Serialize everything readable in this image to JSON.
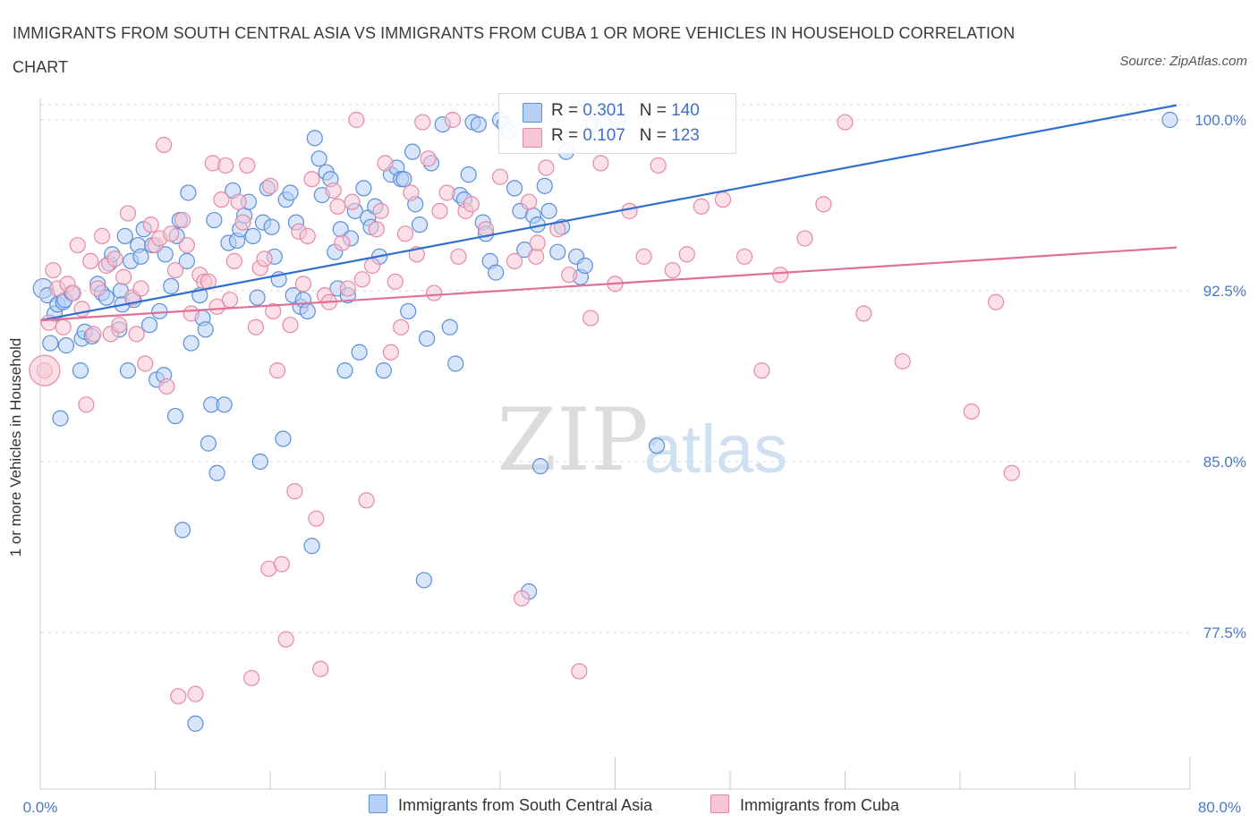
{
  "title": "IMMIGRANTS FROM SOUTH CENTRAL ASIA VS IMMIGRANTS FROM CUBA 1 OR MORE VEHICLES IN HOUSEHOLD CORRELATION CHART",
  "source": "Source: ZipAtlas.com",
  "watermark": {
    "zip": "ZIP",
    "atlas": "atlas"
  },
  "legend": {
    "rows": [
      {
        "r_label": "R =",
        "r_value": "0.301",
        "n_label": "N =",
        "n_value": "140"
      },
      {
        "r_label": "R =",
        "r_value": "0.107",
        "n_label": "N =",
        "n_value": "123"
      }
    ]
  },
  "colors": {
    "blue_fill": "#b8d0f5",
    "blue_stroke": "#5b8fd9",
    "blue_line": "#2f6fd0",
    "pink_fill": "#f7c6d4",
    "pink_stroke": "#e58aa6",
    "pink_line": "#e0709a",
    "tick": "#4a78c8",
    "grid": "#d8d8d8"
  },
  "chart_data": {
    "type": "scatter",
    "title": "IMMIGRANTS FROM SOUTH CENTRAL ASIA VS IMMIGRANTS FROM CUBA 1 OR MORE VEHICLES IN HOUSEHOLD CORRELATION CHART",
    "xlabel": "",
    "ylabel": "1 or more Vehicles in Household",
    "xlim": [
      0,
      80
    ],
    "ylim": [
      70,
      100.5
    ],
    "x_tick_labels": [
      "0.0%",
      "80.0%"
    ],
    "y_ticks": [
      77.5,
      85.0,
      92.5,
      100.0
    ],
    "y_tick_labels": [
      "77.5%",
      "85.0%",
      "92.5%",
      "100.0%"
    ],
    "grid": true,
    "legend_position": "bottom",
    "series": [
      {
        "name": "Immigrants from South Central Asia",
        "color": "#5b8fd9",
        "r": 0.301,
        "n": 140,
        "trend": {
          "x": [
            0,
            80
          ],
          "y": [
            91.2,
            100.8
          ]
        },
        "points": [
          [
            0.2,
            92.6
          ],
          [
            0.5,
            92.3
          ],
          [
            0.7,
            90.2
          ],
          [
            1.0,
            91.5
          ],
          [
            1.2,
            91.9
          ],
          [
            1.4,
            86.9
          ],
          [
            1.6,
            92.0
          ],
          [
            1.7,
            92.1
          ],
          [
            1.8,
            90.1
          ],
          [
            2.2,
            92.4
          ],
          [
            2.8,
            89.0
          ],
          [
            2.9,
            90.4
          ],
          [
            3.1,
            90.7
          ],
          [
            3.6,
            90.5
          ],
          [
            4.0,
            92.8
          ],
          [
            4.3,
            92.4
          ],
          [
            4.6,
            92.2
          ],
          [
            4.8,
            93.7
          ],
          [
            5.0,
            94.1
          ],
          [
            5.6,
            92.5
          ],
          [
            5.7,
            91.9
          ],
          [
            5.5,
            90.8
          ],
          [
            5.9,
            94.9
          ],
          [
            6.1,
            89.0
          ],
          [
            6.3,
            93.8
          ],
          [
            6.5,
            92.1
          ],
          [
            6.8,
            94.5
          ],
          [
            7.0,
            94.0
          ],
          [
            7.2,
            95.2
          ],
          [
            7.6,
            91.0
          ],
          [
            7.8,
            94.5
          ],
          [
            8.1,
            88.6
          ],
          [
            8.3,
            91.6
          ],
          [
            8.6,
            88.8
          ],
          [
            8.7,
            94.1
          ],
          [
            9.1,
            92.7
          ],
          [
            9.4,
            87.0
          ],
          [
            9.5,
            94.9
          ],
          [
            9.7,
            95.6
          ],
          [
            9.9,
            82.0
          ],
          [
            10.2,
            93.8
          ],
          [
            10.5,
            90.2
          ],
          [
            10.8,
            73.5
          ],
          [
            10.3,
            96.8
          ],
          [
            11.1,
            92.3
          ],
          [
            11.3,
            91.3
          ],
          [
            11.5,
            90.8
          ],
          [
            11.7,
            85.8
          ],
          [
            11.9,
            87.5
          ],
          [
            12.1,
            95.6
          ],
          [
            12.3,
            84.5
          ],
          [
            12.8,
            87.5
          ],
          [
            13.1,
            94.6
          ],
          [
            13.4,
            96.9
          ],
          [
            13.7,
            94.7
          ],
          [
            13.9,
            95.2
          ],
          [
            14.2,
            95.8
          ],
          [
            14.5,
            96.4
          ],
          [
            14.8,
            94.9
          ],
          [
            15.1,
            92.2
          ],
          [
            15.3,
            85.0
          ],
          [
            15.5,
            95.5
          ],
          [
            15.8,
            97.0
          ],
          [
            16.1,
            95.3
          ],
          [
            16.3,
            94.0
          ],
          [
            16.6,
            93.0
          ],
          [
            16.9,
            86.0
          ],
          [
            17.1,
            96.5
          ],
          [
            17.4,
            96.8
          ],
          [
            17.6,
            92.3
          ],
          [
            17.8,
            95.5
          ],
          [
            18.1,
            91.8
          ],
          [
            18.3,
            92.1
          ],
          [
            18.6,
            91.6
          ],
          [
            18.9,
            81.3
          ],
          [
            19.1,
            99.2
          ],
          [
            19.4,
            98.3
          ],
          [
            19.6,
            96.7
          ],
          [
            19.9,
            97.7
          ],
          [
            20.2,
            97.4
          ],
          [
            20.5,
            94.2
          ],
          [
            20.7,
            92.6
          ],
          [
            20.9,
            95.2
          ],
          [
            21.2,
            89.0
          ],
          [
            21.4,
            92.3
          ],
          [
            21.6,
            94.8
          ],
          [
            21.9,
            96.0
          ],
          [
            22.2,
            89.8
          ],
          [
            22.5,
            97.0
          ],
          [
            22.8,
            95.7
          ],
          [
            23.0,
            95.3
          ],
          [
            23.3,
            96.2
          ],
          [
            23.6,
            94.0
          ],
          [
            23.9,
            89.0
          ],
          [
            24.4,
            97.6
          ],
          [
            24.8,
            97.9
          ],
          [
            25.1,
            97.4
          ],
          [
            25.6,
            91.6
          ],
          [
            25.9,
            98.6
          ],
          [
            25.3,
            97.4
          ],
          [
            26.1,
            96.3
          ],
          [
            26.4,
            95.4
          ],
          [
            26.7,
            79.8
          ],
          [
            26.9,
            90.4
          ],
          [
            27.2,
            98.1
          ],
          [
            28.0,
            99.8
          ],
          [
            28.5,
            90.9
          ],
          [
            28.9,
            89.3
          ],
          [
            29.2,
            96.7
          ],
          [
            29.5,
            96.5
          ],
          [
            29.8,
            97.6
          ],
          [
            30.1,
            99.9
          ],
          [
            30.5,
            99.8
          ],
          [
            30.8,
            95.5
          ],
          [
            31.0,
            95.0
          ],
          [
            31.3,
            93.8
          ],
          [
            31.7,
            93.3
          ],
          [
            32.0,
            100.0
          ],
          [
            32.3,
            99.8
          ],
          [
            32.6,
            99.5
          ],
          [
            33.0,
            97.0
          ],
          [
            33.4,
            96.0
          ],
          [
            33.7,
            94.3
          ],
          [
            34.0,
            79.3
          ],
          [
            34.3,
            95.8
          ],
          [
            34.6,
            95.4
          ],
          [
            34.8,
            84.8
          ],
          [
            35.1,
            97.1
          ],
          [
            35.4,
            96.0
          ],
          [
            36.0,
            94.2
          ],
          [
            36.3,
            95.3
          ],
          [
            36.6,
            98.6
          ],
          [
            37.3,
            94.0
          ],
          [
            37.6,
            93.1
          ],
          [
            37.9,
            93.6
          ],
          [
            38.5,
            99.8
          ],
          [
            39.2,
            99.8
          ],
          [
            40.2,
            100.0
          ],
          [
            42.9,
            85.7
          ],
          [
            78.6,
            100.0
          ]
        ]
      },
      {
        "name": "Immigrants from Cuba",
        "color": "#e58aa6",
        "r": 0.107,
        "n": 123,
        "trend": {
          "x": [
            0,
            80
          ],
          "y": [
            91.2,
            94.4
          ]
        },
        "points": [
          [
            0.3,
            89.0
          ],
          [
            0.6,
            91.1
          ],
          [
            0.9,
            93.4
          ],
          [
            1.2,
            92.6
          ],
          [
            1.6,
            90.9
          ],
          [
            1.9,
            92.8
          ],
          [
            2.3,
            92.4
          ],
          [
            2.6,
            94.5
          ],
          [
            2.9,
            91.7
          ],
          [
            3.2,
            87.5
          ],
          [
            3.5,
            93.8
          ],
          [
            3.7,
            90.6
          ],
          [
            4.0,
            92.6
          ],
          [
            4.3,
            94.9
          ],
          [
            4.6,
            93.6
          ],
          [
            4.9,
            90.6
          ],
          [
            5.2,
            93.9
          ],
          [
            5.5,
            91.0
          ],
          [
            5.8,
            93.1
          ],
          [
            6.1,
            95.9
          ],
          [
            6.4,
            92.2
          ],
          [
            6.7,
            90.6
          ],
          [
            7.0,
            92.6
          ],
          [
            7.3,
            89.3
          ],
          [
            7.7,
            95.4
          ],
          [
            8.0,
            94.5
          ],
          [
            8.3,
            94.8
          ],
          [
            8.6,
            98.9
          ],
          [
            8.8,
            88.3
          ],
          [
            9.1,
            95.0
          ],
          [
            9.4,
            93.4
          ],
          [
            9.6,
            74.7
          ],
          [
            9.9,
            95.6
          ],
          [
            10.2,
            94.5
          ],
          [
            10.5,
            91.5
          ],
          [
            10.8,
            74.8
          ],
          [
            11.1,
            93.2
          ],
          [
            11.4,
            92.9
          ],
          [
            11.7,
            92.9
          ],
          [
            12.0,
            98.1
          ],
          [
            12.3,
            91.8
          ],
          [
            12.6,
            96.5
          ],
          [
            12.9,
            98.0
          ],
          [
            13.2,
            92.1
          ],
          [
            13.5,
            93.8
          ],
          [
            13.8,
            96.4
          ],
          [
            14.1,
            95.5
          ],
          [
            14.4,
            98.0
          ],
          [
            14.7,
            75.5
          ],
          [
            15.0,
            90.9
          ],
          [
            15.3,
            93.5
          ],
          [
            15.6,
            93.9
          ],
          [
            15.9,
            80.3
          ],
          [
            16.2,
            91.6
          ],
          [
            16.5,
            89.0
          ],
          [
            16.8,
            80.5
          ],
          [
            17.1,
            77.2
          ],
          [
            17.4,
            91.0
          ],
          [
            17.7,
            83.7
          ],
          [
            18.0,
            95.1
          ],
          [
            18.3,
            92.8
          ],
          [
            18.6,
            94.9
          ],
          [
            18.9,
            97.4
          ],
          [
            19.2,
            82.5
          ],
          [
            19.5,
            75.9
          ],
          [
            19.8,
            92.3
          ],
          [
            20.1,
            92.0
          ],
          [
            20.4,
            96.9
          ],
          [
            20.7,
            96.2
          ],
          [
            21.0,
            94.6
          ],
          [
            21.4,
            92.6
          ],
          [
            21.7,
            96.4
          ],
          [
            22.0,
            100.0
          ],
          [
            22.4,
            93.0
          ],
          [
            22.7,
            83.3
          ],
          [
            23.1,
            93.6
          ],
          [
            23.4,
            95.2
          ],
          [
            23.7,
            96.0
          ],
          [
            24.0,
            98.1
          ],
          [
            24.4,
            89.8
          ],
          [
            24.7,
            92.9
          ],
          [
            25.1,
            90.9
          ],
          [
            25.4,
            95.0
          ],
          [
            25.8,
            96.8
          ],
          [
            26.2,
            94.1
          ],
          [
            26.6,
            99.9
          ],
          [
            27.0,
            98.3
          ],
          [
            27.4,
            92.4
          ],
          [
            27.8,
            96.0
          ],
          [
            28.3,
            96.8
          ],
          [
            28.7,
            100.0
          ],
          [
            29.1,
            94.0
          ],
          [
            29.6,
            96.0
          ],
          [
            30.0,
            96.3
          ],
          [
            31.0,
            95.2
          ],
          [
            32.0,
            97.5
          ],
          [
            33.0,
            93.8
          ],
          [
            33.5,
            79.0
          ],
          [
            34.0,
            96.4
          ],
          [
            34.5,
            94.0
          ],
          [
            35.2,
            97.9
          ],
          [
            36.0,
            95.2
          ],
          [
            36.8,
            93.2
          ],
          [
            37.5,
            75.8
          ],
          [
            38.3,
            91.3
          ],
          [
            39.0,
            98.1
          ],
          [
            40.0,
            92.8
          ],
          [
            41.0,
            96.0
          ],
          [
            42.0,
            94.0
          ],
          [
            43.0,
            98.0
          ],
          [
            44.0,
            93.4
          ],
          [
            45.0,
            94.1
          ],
          [
            46.0,
            96.2
          ],
          [
            47.5,
            96.5
          ],
          [
            49.0,
            94.0
          ],
          [
            50.2,
            89.0
          ],
          [
            51.5,
            93.2
          ],
          [
            53.2,
            94.8
          ],
          [
            54.5,
            96.3
          ],
          [
            56.0,
            99.9
          ],
          [
            57.3,
            91.5
          ],
          [
            60.0,
            89.4
          ],
          [
            64.8,
            87.2
          ],
          [
            66.5,
            92.0
          ],
          [
            67.6,
            84.5
          ],
          [
            34.6,
            94.6
          ],
          [
            16.0,
            97.1
          ]
        ]
      }
    ]
  },
  "bottom_legend": [
    {
      "label": "Immigrants from South Central Asia"
    },
    {
      "label": "Immigrants from Cuba"
    }
  ]
}
